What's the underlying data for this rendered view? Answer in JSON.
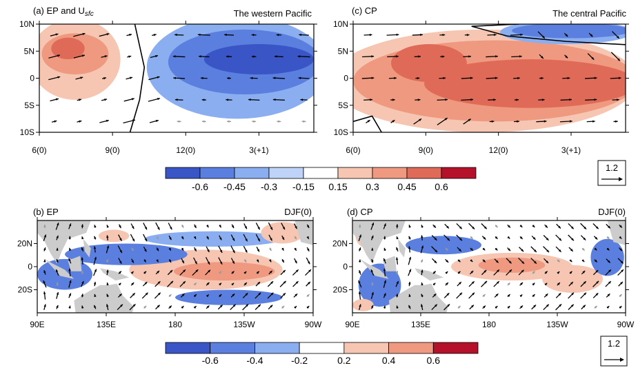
{
  "chart_data": [
    {
      "type": "heatmap",
      "panel": "a",
      "title": "(a) EP and U",
      "title_sub": "sfc",
      "annotation": "The western Pacific",
      "x_ticks": [
        "6(0)",
        "9(0)",
        "12(0)",
        "3(+1)"
      ],
      "y_ticks": [
        "10N",
        "5N",
        "0",
        "5S",
        "10S"
      ],
      "colorbar_ref": 0,
      "xlim": [
        6,
        17.5
      ],
      "ylim": [
        -10,
        10
      ],
      "blobs": [
        {
          "x": 7.5,
          "y": 3.5,
          "rx": 1.9,
          "ry": 7.5,
          "value": 0.3
        },
        {
          "x": 7.5,
          "y": 4.5,
          "rx": 1.4,
          "ry": 3.8,
          "value": 0.45
        },
        {
          "x": 7.2,
          "y": 5.5,
          "rx": 0.7,
          "ry": 2.0,
          "value": 0.6
        },
        {
          "x": 14.3,
          "y": 2.0,
          "rx": 3.8,
          "ry": 9.5,
          "value": -0.3
        },
        {
          "x": 14.6,
          "y": 3.0,
          "rx": 3.2,
          "ry": 6.0,
          "value": -0.45
        },
        {
          "x": 15.2,
          "y": 3.5,
          "rx": 2.3,
          "ry": 2.8,
          "value": -0.6
        }
      ]
    },
    {
      "type": "heatmap",
      "panel": "c",
      "title": "(c) CP",
      "annotation": "The central Pacific",
      "x_ticks": [
        "6(0)",
        "9(0)",
        "12(0)",
        "3(+1)"
      ],
      "y_ticks": [
        "10N",
        "5N",
        "0",
        "5S",
        "10S"
      ],
      "colorbar_ref": 0,
      "xlim": [
        6,
        17.5
      ],
      "ylim": [
        -10,
        10
      ],
      "blobs": [
        {
          "x": 11.5,
          "y": -0.5,
          "rx": 6.5,
          "ry": 9.5,
          "value": 0.3
        },
        {
          "x": 12.0,
          "y": -0.5,
          "rx": 6.0,
          "ry": 7.5,
          "value": 0.45
        },
        {
          "x": 13.5,
          "y": -1.0,
          "rx": 4.5,
          "ry": 4.5,
          "value": 0.6
        },
        {
          "x": 9.2,
          "y": 2.8,
          "rx": 1.6,
          "ry": 3.5,
          "value": 0.6
        },
        {
          "x": 15.0,
          "y": 8.5,
          "rx": 2.8,
          "ry": 2.2,
          "value": -0.3
        },
        {
          "x": 15.2,
          "y": 8.8,
          "rx": 2.5,
          "ry": 1.4,
          "value": -0.45
        }
      ]
    },
    {
      "type": "heatmap",
      "panel": "b",
      "title": "(b) EP",
      "annotation": "DJF(0)",
      "x_ticks": [
        "90E",
        "135E",
        "180",
        "135W",
        "90W"
      ],
      "y_ticks": [
        "20N",
        "0",
        "20S"
      ],
      "colorbar_ref": 1,
      "xlim": [
        90,
        270
      ],
      "ylim": [
        -30,
        30
      ],
      "blobs": [
        {
          "x": 200,
          "y": -2,
          "rx": 50,
          "ry": 13,
          "value": 0.4
        },
        {
          "x": 212,
          "y": -3,
          "rx": 33,
          "ry": 6,
          "value": 0.6
        },
        {
          "x": 148,
          "y": 8,
          "rx": 40,
          "ry": 7,
          "value": -0.4
        },
        {
          "x": 108,
          "y": -5,
          "rx": 18,
          "ry": 10,
          "value": -0.4
        },
        {
          "x": 205,
          "y": 18,
          "rx": 45,
          "ry": 5,
          "value": -0.2
        },
        {
          "x": 250,
          "y": 22,
          "rx": 14,
          "ry": 7,
          "value": 0.4
        },
        {
          "x": 215,
          "y": -20,
          "rx": 35,
          "ry": 5,
          "value": -0.4
        },
        {
          "x": 140,
          "y": 20,
          "rx": 10,
          "ry": 4,
          "value": 0.4
        }
      ]
    },
    {
      "type": "heatmap",
      "panel": "d",
      "title": "(d) CP",
      "annotation": "DJF(0)",
      "x_ticks": [
        "90E",
        "135E",
        "180",
        "135W",
        "90W"
      ],
      "y_ticks": [
        "20N",
        "0",
        "20S"
      ],
      "colorbar_ref": 1,
      "xlim": [
        90,
        270
      ],
      "ylim": [
        -30,
        30
      ],
      "blobs": [
        {
          "x": 195,
          "y": 0,
          "rx": 40,
          "ry": 9,
          "value": 0.4
        },
        {
          "x": 195,
          "y": 1,
          "rx": 22,
          "ry": 5,
          "value": 0.6
        },
        {
          "x": 235,
          "y": -8,
          "rx": 20,
          "ry": 9,
          "value": 0.4
        },
        {
          "x": 108,
          "y": -12,
          "rx": 14,
          "ry": 14,
          "value": -0.4
        },
        {
          "x": 150,
          "y": 14,
          "rx": 25,
          "ry": 6,
          "value": -0.4
        },
        {
          "x": 258,
          "y": 6,
          "rx": 11,
          "ry": 12,
          "value": -0.4
        },
        {
          "x": 100,
          "y": 20,
          "rx": 8,
          "ry": 8,
          "value": 0.4
        },
        {
          "x": 97,
          "y": -25,
          "rx": 7,
          "ry": 4,
          "value": 0.4
        }
      ]
    }
  ],
  "colorbars": [
    {
      "levels": [
        "-0.6",
        "-0.45",
        "-0.3",
        "-0.15",
        "0.15",
        "0.3",
        "0.45",
        "0.6"
      ],
      "colors": [
        "#3a55c6",
        "#5b7fde",
        "#8aaef0",
        "#bfd3f8",
        "#ffffff",
        "#f6c6b2",
        "#ef9a80",
        "#e06a58",
        "#b5112a"
      ]
    },
    {
      "levels": [
        "-0.6",
        "-0.4",
        "-0.2",
        "0.2",
        "0.4",
        "0.6"
      ],
      "colors": [
        "#3a55c6",
        "#5b7fde",
        "#8aaef0",
        "#ffffff",
        "#f6c6b2",
        "#ef9a80",
        "#b5112a"
      ]
    }
  ],
  "reference_vectors": [
    {
      "label": "1.2"
    },
    {
      "label": "1.2"
    }
  ],
  "colors": {
    "land": "#cccccc",
    "arrow": "#000000",
    "weak_arrow": "#999999",
    "frame": "#000000"
  }
}
